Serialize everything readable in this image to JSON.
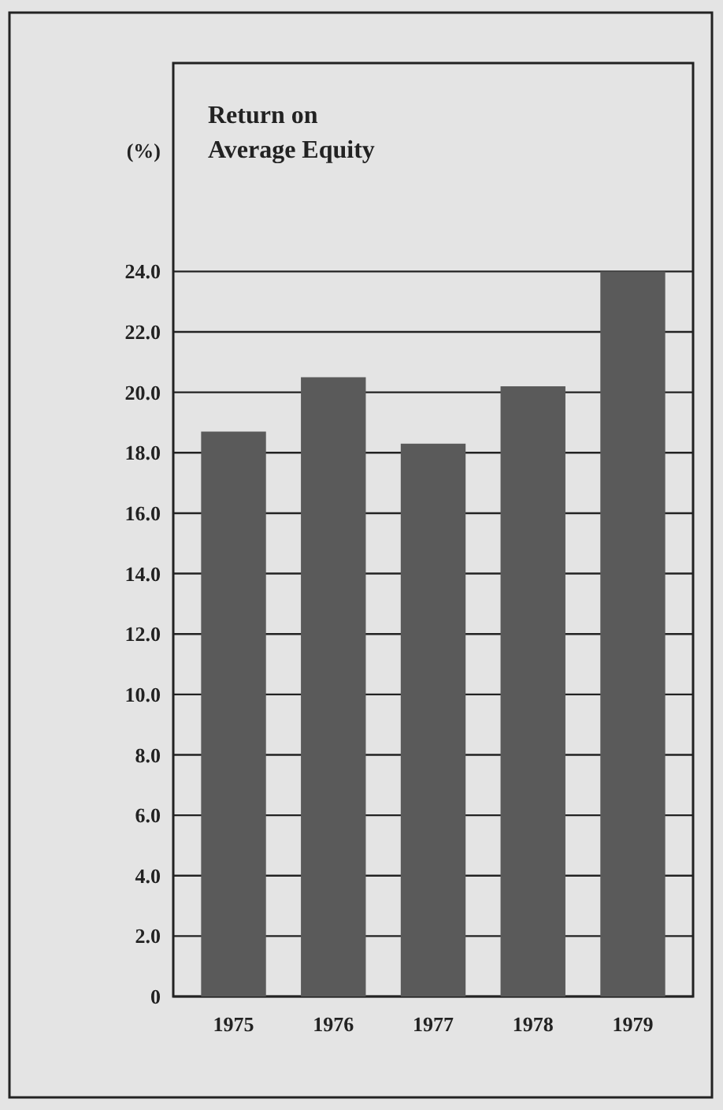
{
  "chart_data": {
    "type": "bar",
    "title": "Return on\nAverage Equity",
    "ylabel": "(%)",
    "categories": [
      "1975",
      "1976",
      "1977",
      "1978",
      "1979"
    ],
    "values": [
      18.7,
      20.5,
      18.3,
      20.2,
      24.0
    ],
    "color": "#5a5a5a",
    "ylim": [
      0,
      30.9
    ],
    "yticks": [
      0,
      {
        "value": 2,
        "label": "2.0"
      },
      {
        "value": 4,
        "label": "4.0"
      },
      {
        "value": 6,
        "label": "6.0"
      },
      {
        "value": 8,
        "label": "8.0"
      },
      {
        "value": 10,
        "label": "10.0"
      },
      {
        "value": 12,
        "label": "12.0"
      },
      {
        "value": 14,
        "label": "14.0"
      },
      {
        "value": 16,
        "label": "16.0"
      },
      {
        "value": 18,
        "label": "18.0"
      },
      {
        "value": 20,
        "label": "20.0"
      },
      {
        "value": 22,
        "label": "22.0"
      },
      {
        "value": 24,
        "label": "24.0"
      }
    ],
    "grid": "y"
  }
}
